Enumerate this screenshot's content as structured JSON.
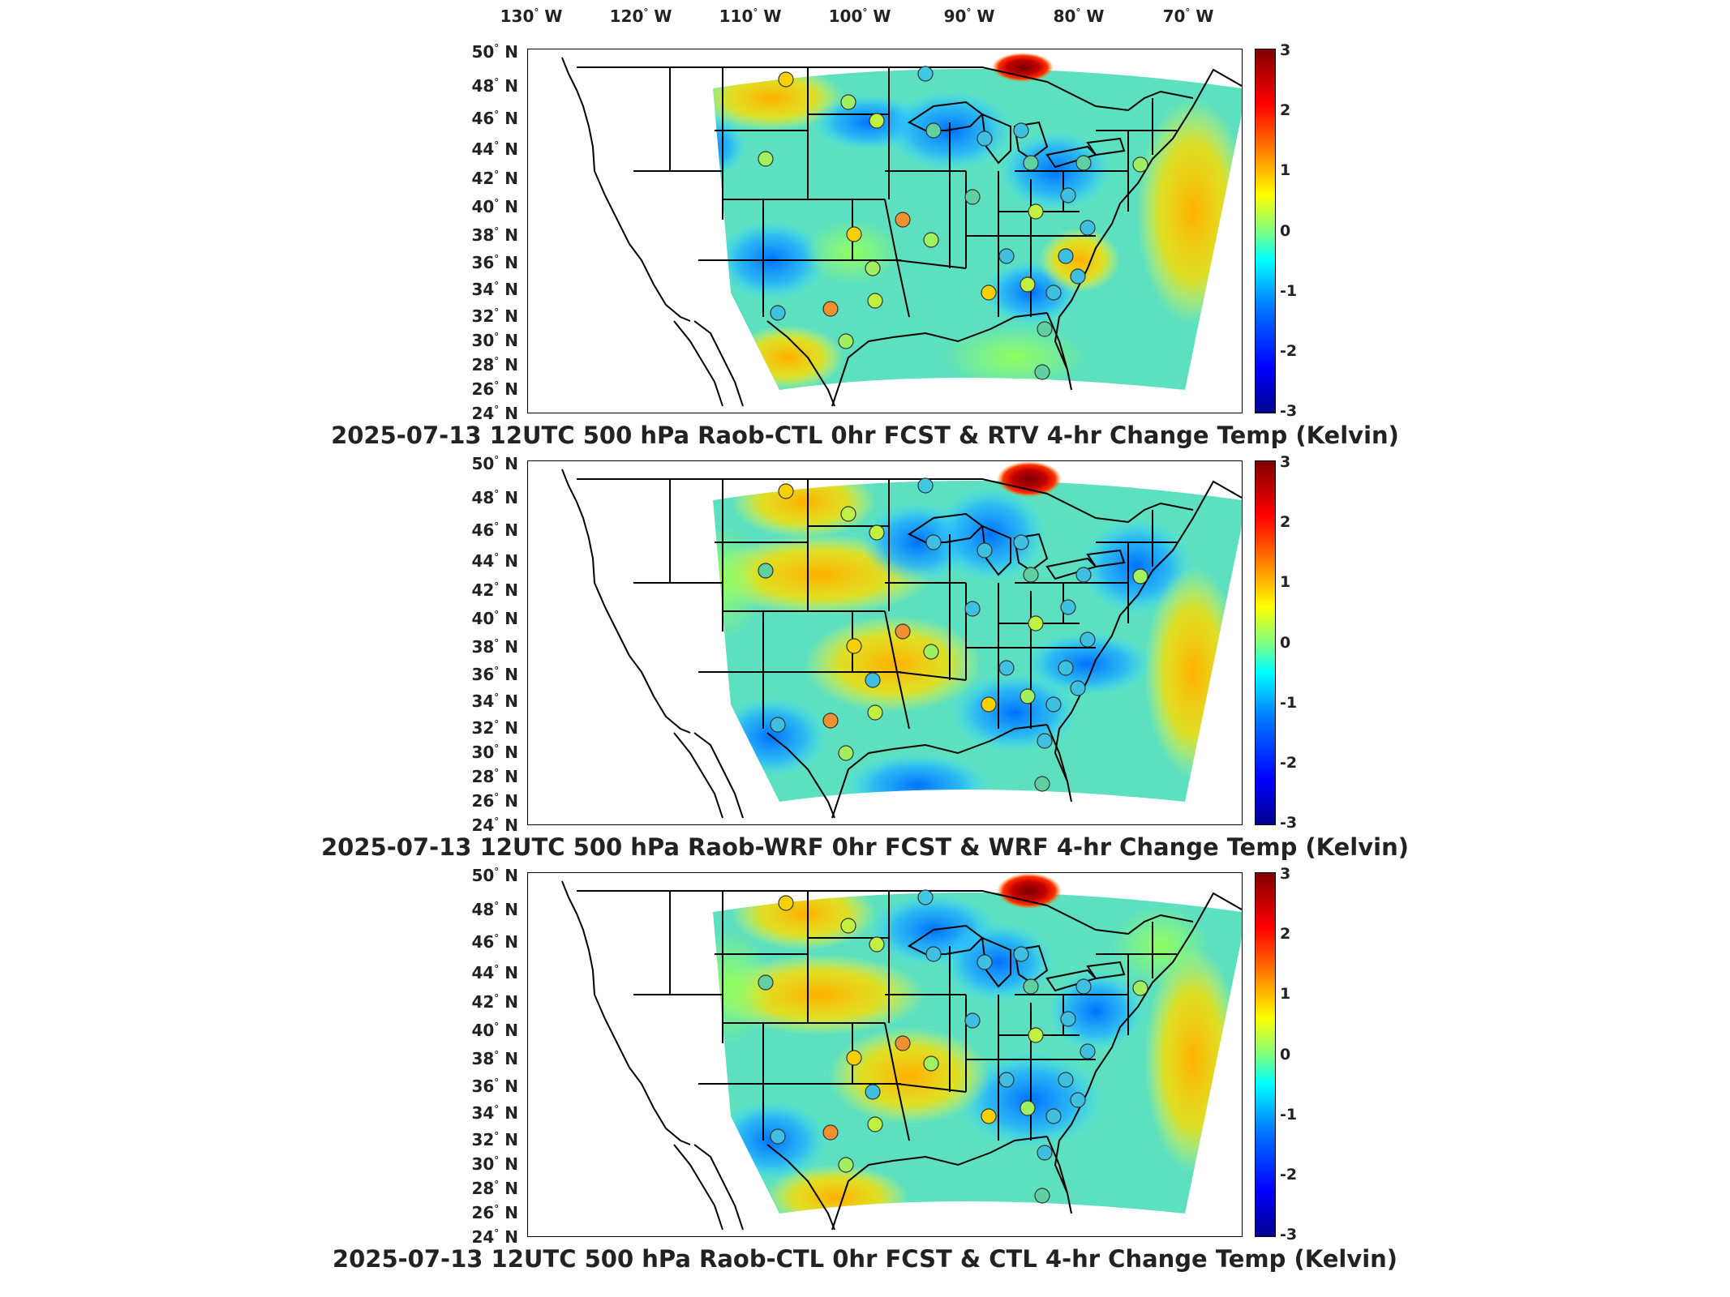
{
  "lon_labels": [
    {
      "deg": "130",
      "hem": "W"
    },
    {
      "deg": "120",
      "hem": "W"
    },
    {
      "deg": "110",
      "hem": "W"
    },
    {
      "deg": "100",
      "hem": "W"
    },
    {
      "deg": "90",
      "hem": "W"
    },
    {
      "deg": "80",
      "hem": "W"
    },
    {
      "deg": "70",
      "hem": "W"
    }
  ],
  "lat_labels": [
    {
      "deg": "50",
      "hem": "N"
    },
    {
      "deg": "48",
      "hem": "N"
    },
    {
      "deg": "46",
      "hem": "N"
    },
    {
      "deg": "44",
      "hem": "N"
    },
    {
      "deg": "42",
      "hem": "N"
    },
    {
      "deg": "40",
      "hem": "N"
    },
    {
      "deg": "38",
      "hem": "N"
    },
    {
      "deg": "36",
      "hem": "N"
    },
    {
      "deg": "34",
      "hem": "N"
    },
    {
      "deg": "32",
      "hem": "N"
    },
    {
      "deg": "30",
      "hem": "N"
    },
    {
      "deg": "28",
      "hem": "N"
    },
    {
      "deg": "26",
      "hem": "N"
    },
    {
      "deg": "24",
      "hem": "N"
    }
  ],
  "colorbar_ticks": [
    "3",
    "2",
    "1",
    "0",
    "-1",
    "-2",
    "-3"
  ],
  "colorbar_range": [
    -3,
    3
  ],
  "colormap": [
    "#00008f",
    "#0000ff",
    "#0080ff",
    "#00ffff",
    "#80ff80",
    "#ffff00",
    "#ff8000",
    "#ff0000",
    "#800000"
  ],
  "panels": [
    {
      "title": "2025-07-13 12UTC 500 hPa Raob-CTL 0hr FCST & RTV 4-hr Change Temp (Kelvin)"
    },
    {
      "title": "2025-07-13 12UTC 500 hPa Raob-WRF 0hr FCST & WRF 4-hr Change Temp (Kelvin)"
    },
    {
      "title": "2025-07-13 12UTC 500 hPa Raob-CTL 0hr FCST & CTL 4-hr Change Temp (Kelvin)"
    }
  ]
}
